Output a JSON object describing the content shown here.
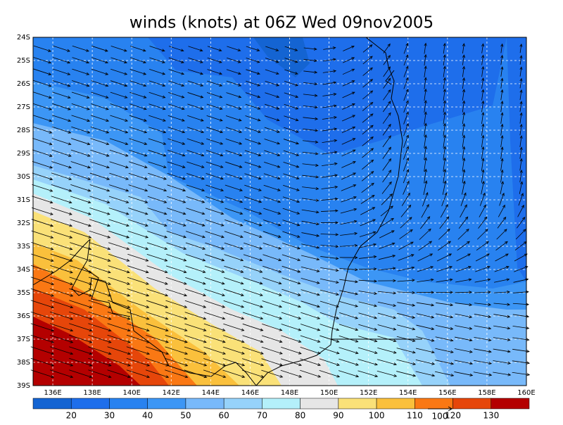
{
  "chart_data": {
    "type": "map",
    "title": "winds (knots) at 06Z Wed 09nov2005",
    "xlim": [
      135,
      160
    ],
    "ylim": [
      -39,
      -24
    ],
    "grid": true,
    "xticks": [
      {
        "value": 136,
        "label": "136E"
      },
      {
        "value": 138,
        "label": "138E"
      },
      {
        "value": 140,
        "label": "140E"
      },
      {
        "value": 142,
        "label": "142E"
      },
      {
        "value": 144,
        "label": "144E"
      },
      {
        "value": 146,
        "label": "146E"
      },
      {
        "value": 148,
        "label": "148E"
      },
      {
        "value": 150,
        "label": "150E"
      },
      {
        "value": 152,
        "label": "152E"
      },
      {
        "value": 154,
        "label": "154E"
      },
      {
        "value": 156,
        "label": "156E"
      },
      {
        "value": 158,
        "label": "158E"
      },
      {
        "value": 160,
        "label": "160E"
      }
    ],
    "yticks": [
      {
        "value": -24,
        "label": "24S"
      },
      {
        "value": -25,
        "label": "25S"
      },
      {
        "value": -26,
        "label": "26S"
      },
      {
        "value": -27,
        "label": "27S"
      },
      {
        "value": -28,
        "label": "28S"
      },
      {
        "value": -29,
        "label": "29S"
      },
      {
        "value": -30,
        "label": "30S"
      },
      {
        "value": -31,
        "label": "31S"
      },
      {
        "value": -32,
        "label": "32S"
      },
      {
        "value": -33,
        "label": "33S"
      },
      {
        "value": -34,
        "label": "34S"
      },
      {
        "value": -35,
        "label": "35S"
      },
      {
        "value": -36,
        "label": "36S"
      },
      {
        "value": -37,
        "label": "37S"
      },
      {
        "value": -38,
        "label": "38S"
      },
      {
        "value": -39,
        "label": "39S"
      }
    ],
    "colorbar": {
      "levels": [
        20,
        30,
        40,
        50,
        60,
        70,
        80,
        90,
        100,
        110,
        120,
        130
      ],
      "colors": [
        "#1464d2",
        "#1e6eeb",
        "#2882f0",
        "#3c96f5",
        "#78b9fa",
        "#96d2fa",
        "#b4f0fa",
        "#e6e6e6",
        "#fae178",
        "#fac03c",
        "#fa7814",
        "#e6460a",
        "#b40000"
      ]
    },
    "reference_vector": 100
  }
}
